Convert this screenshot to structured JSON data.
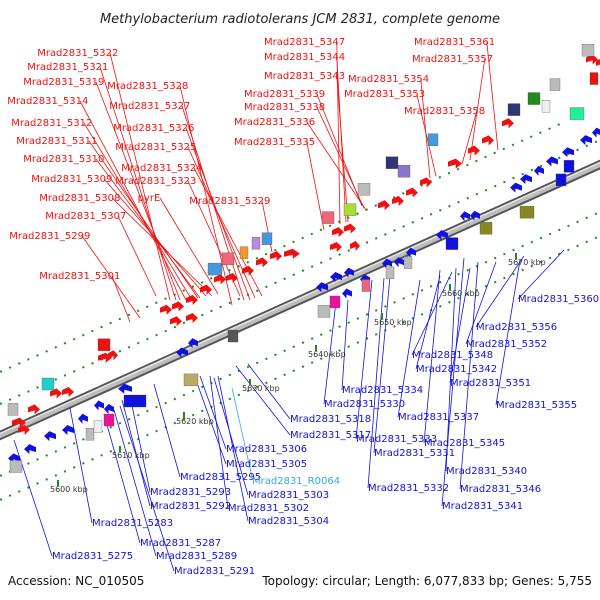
{
  "title": "Methylobacterium radiotolerans JCM 2831, complete genome",
  "footer": {
    "accession": "Accession: NC_010505",
    "summary": "Topology: circular; Length: 6,077,833 bp; Genes: 5,755"
  },
  "colors": {
    "forward": "#ee1111",
    "reverse": "#1111dd",
    "rna": "#33aadd",
    "backbone": "#999999",
    "grid": "#228822"
  },
  "ticks": [
    {
      "label": "5600 kbp",
      "kbp": 5600
    },
    {
      "label": "5610 kbp",
      "kbp": 5610
    },
    {
      "label": "5620 kbp",
      "kbp": 5620
    },
    {
      "label": "5630 kbp",
      "kbp": 5630
    },
    {
      "label": "5640 kbp",
      "kbp": 5640
    },
    {
      "label": "5650 kbp",
      "kbp": 5650
    },
    {
      "label": "5660 kbp",
      "kbp": 5660
    },
    {
      "label": "5670 kbp",
      "kbp": 5670
    }
  ],
  "forward_labels": [
    "Mrad2831_5322",
    "Mrad2831_5321",
    "Mrad2831_5319",
    "Mrad2831_5328",
    "Mrad2831_5314",
    "Mrad2831_5327",
    "Mrad2831_5312",
    "Mrad2831_5326",
    "Mrad2831_5311",
    "Mrad2831_5325",
    "Mrad2831_5310",
    "Mrad2831_5324",
    "Mrad2831_5309",
    "Mrad2831_5323",
    "Mrad2831_5308",
    "pyrE",
    "Mrad2831_5329",
    "Mrad2831_5307",
    "Mrad2831_5299",
    "Mrad2831_5301",
    "Mrad2831_5347",
    "Mrad2831_5344",
    "Mrad2831_5343",
    "Mrad2831_5339",
    "Mrad2831_5338",
    "Mrad2831_5336",
    "Mrad2831_5335",
    "Mrad2831_5361",
    "Mrad2831_5357",
    "Mrad2831_5354",
    "Mrad2831_5353",
    "Mrad2831_5358"
  ],
  "reverse_labels": [
    "Mrad2831_5360",
    "Mrad2831_5356",
    "Mrad2831_5352",
    "Mrad2831_5348",
    "Mrad2831_5342",
    "Mrad2831_5351",
    "Mrad2831_5355",
    "Mrad2831_5334",
    "Mrad2831_5330",
    "Mrad2831_5337",
    "Mrad2831_5318",
    "Mrad2831_5317",
    "Mrad2831_5333",
    "Mrad2831_5345",
    "Mrad2831_5331",
    "Mrad2831_5306",
    "Mrad2831_5305",
    "Mrad2831_5340",
    "Mrad2831_5295",
    "Mrad2831_5332",
    "Mrad2831_5346",
    "Mrad2831_5293",
    "Mrad2831_5303",
    "Mrad2831_5292",
    "Mrad2831_5302",
    "Mrad2831_5341",
    "Mrad2831_5304",
    "Mrad2831_5283",
    "Mrad2831_5287",
    "Mrad2831_5275",
    "Mrad2831_5289",
    "Mrad2831_5291"
  ],
  "rna_labels": [
    "Mrad2831_R0064"
  ]
}
